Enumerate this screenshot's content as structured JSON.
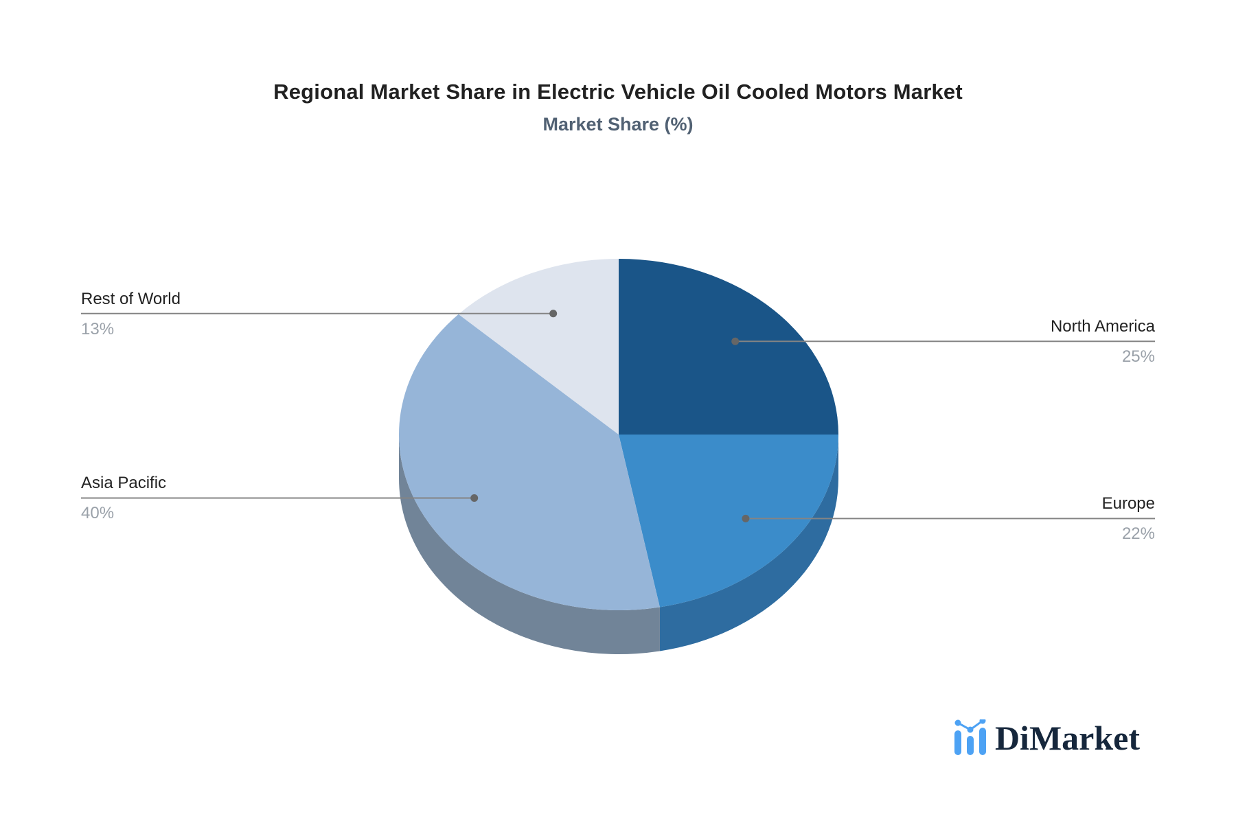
{
  "title": "Regional Market Share in Electric Vehicle Oil Cooled Motors Market",
  "subtitle": "Market Share (%)",
  "logo": {
    "text": "DiMarket",
    "icon": "bar-line-chart-icon",
    "icon_color": "#4DA2F4",
    "text_color": "#16273C"
  },
  "chart_data": {
    "type": "pie",
    "style": "pie-3d",
    "title": "Regional Market Share in Electric Vehicle Oil Cooled Motors Market",
    "subtitle": "Market Share (%)",
    "unit": "%",
    "categories": [
      "North America",
      "Europe",
      "Asia Pacific",
      "Rest of World"
    ],
    "values": [
      25,
      22,
      40,
      13
    ],
    "value_labels": [
      "25%",
      "22%",
      "40%",
      "13%"
    ],
    "colors": [
      "#1A5588",
      "#3B8CCA",
      "#96B5D8",
      "#DEE4EE"
    ],
    "side_colors": [
      "#14426B",
      "#2E6CA0",
      "#718498",
      "#BCC5D2"
    ],
    "start_angle_deg": 0,
    "direction": "clockwise",
    "legend": "none",
    "background": "#FFFFFF",
    "leader_line_color": "#848484",
    "leader_dot_color": "#666666",
    "category_text_color": "#222222",
    "value_text_color": "#9AA1A9"
  }
}
